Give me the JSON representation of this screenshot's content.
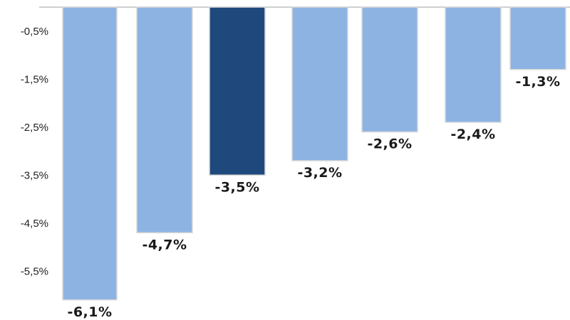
{
  "chart_data": {
    "type": "bar",
    "title": "",
    "xlabel": "",
    "ylabel": "",
    "categories": [
      "",
      "",
      "",
      "",
      "",
      "",
      ""
    ],
    "values": [
      -6.1,
      -4.7,
      -3.5,
      -3.2,
      -2.6,
      -2.4,
      -1.3
    ],
    "data_labels": [
      "-6,1%",
      "-4,7%",
      "-3,5%",
      "-3,2%",
      "-2,6%",
      "-2,4%",
      "-1,3%"
    ],
    "highlight_index": 2,
    "yticks": [
      -0.5,
      -1.5,
      -2.5,
      -3.5,
      -4.5,
      -5.5
    ],
    "ytick_labels": [
      "-0,5%",
      "-1,5%",
      "-2,5%",
      "-3,5%",
      "-4,5%",
      "-5,5%"
    ],
    "ylim": [
      -6.5,
      0
    ],
    "grid": false,
    "legend": "none",
    "colors": {
      "bar": "#8db3e2",
      "highlight": "#1f497d",
      "axis": "#bfbfbf",
      "bar_edge": "#d9d9d9"
    }
  }
}
